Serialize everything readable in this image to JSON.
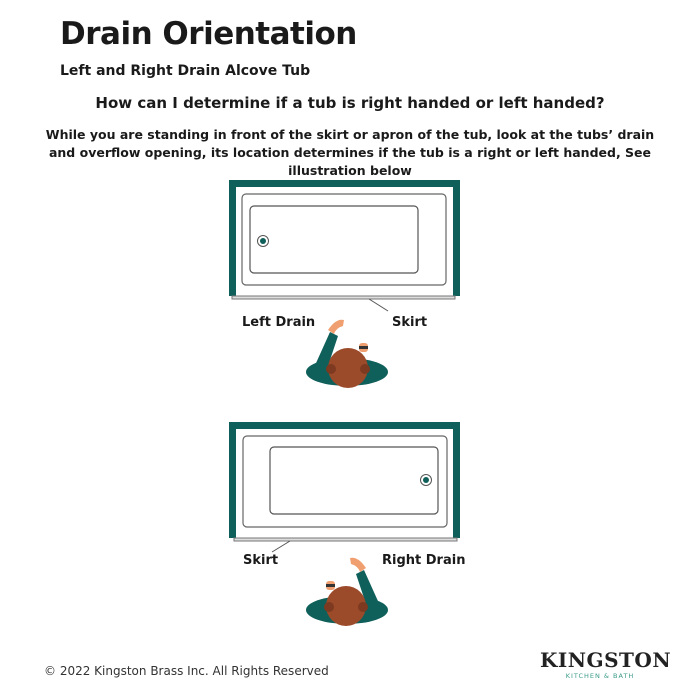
{
  "header": {
    "title": "Drain Orientation",
    "subtitle": "Left and Right Drain Alcove Tub"
  },
  "question": "How can I determine if a tub is right handed or left handed?",
  "answer": "While you are standing in front of the skirt or apron of the tub, look at the tubs’ drain and overflow opening, its location determines if the tub is a right or left handed, See illustration below",
  "illustrations": {
    "left": {
      "drain_label": "Left Drain",
      "skirt_label": "Skirt"
    },
    "right": {
      "drain_label": "Right Drain",
      "skirt_label": "Skirt"
    }
  },
  "colors": {
    "accent": "#0f5f5a",
    "skin": "#f0a070",
    "hair": "#9b4a2a"
  },
  "footer": {
    "copyright": "© 2022 Kingston Brass Inc.  All Rights Reserved",
    "logo_main": "KINGSTON",
    "logo_sub": "KITCHEN & BATH"
  }
}
